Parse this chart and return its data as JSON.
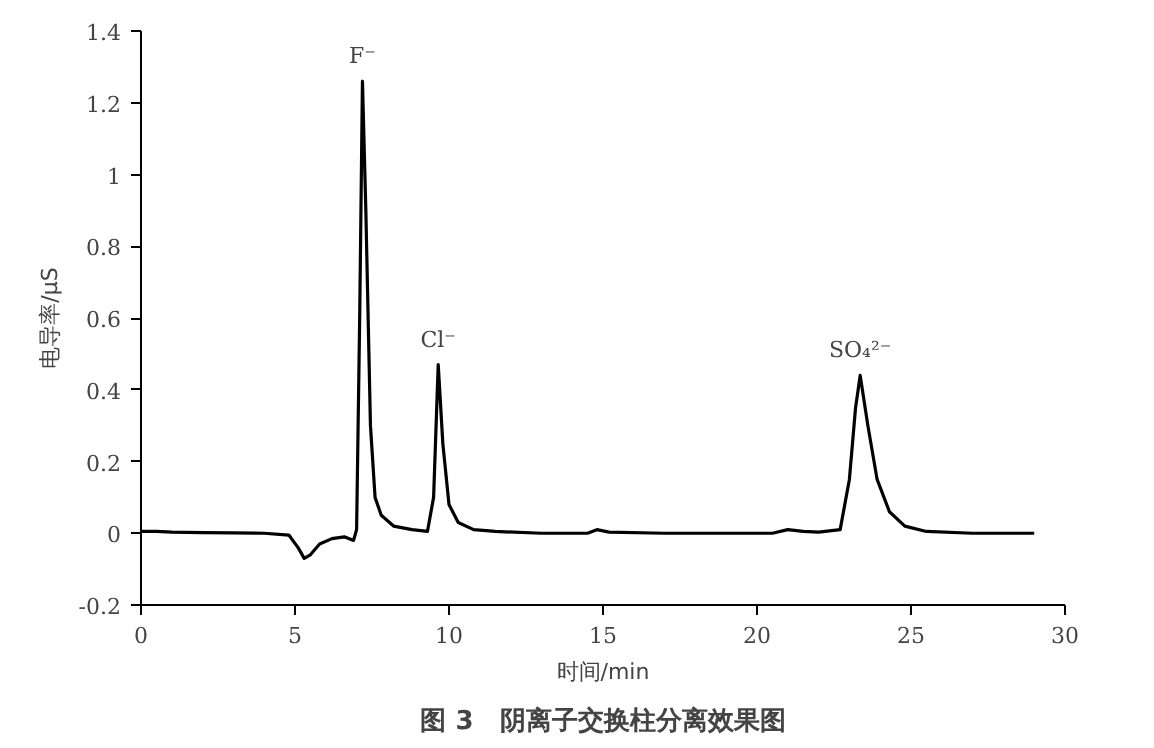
{
  "chart_data": {
    "type": "line",
    "title": "图 3　阴离子交换柱分离效果图",
    "xlabel": "时间/min",
    "ylabel": "电导率/μS",
    "x": [
      0,
      0.5,
      1,
      2,
      3,
      4,
      4.8,
      5.1,
      5.3,
      5.5,
      5.8,
      6.2,
      6.6,
      6.9,
      7.0,
      7.1,
      7.19,
      7.3,
      7.45,
      7.6,
      7.8,
      8.2,
      8.8,
      9.3,
      9.5,
      9.65,
      9.8,
      10.0,
      10.3,
      10.8,
      11.5,
      13,
      14.5,
      14.8,
      15.2,
      17,
      19,
      20.5,
      21,
      21.5,
      22,
      22.7,
      23.0,
      23.2,
      23.35,
      23.6,
      23.9,
      24.3,
      24.8,
      25.5,
      27,
      29
    ],
    "series": [
      {
        "color": "#000000",
        "values": [
          0.005,
          0.005,
          0.003,
          0.002,
          0.001,
          0,
          -0.005,
          -0.04,
          -0.07,
          -0.06,
          -0.03,
          -0.015,
          -0.01,
          -0.02,
          0.01,
          0.6,
          1.26,
          0.9,
          0.3,
          0.1,
          0.05,
          0.02,
          0.01,
          0.005,
          0.1,
          0.47,
          0.25,
          0.08,
          0.03,
          0.01,
          0.005,
          0,
          0,
          0.01,
          0.003,
          0,
          0,
          0,
          0.01,
          0.005,
          0.003,
          0.01,
          0.15,
          0.35,
          0.44,
          0.3,
          0.15,
          0.06,
          0.02,
          0.005,
          0,
          0
        ]
      }
    ],
    "xlim": [
      0,
      30
    ],
    "xticks": [
      0,
      5,
      10,
      15,
      20,
      25,
      30
    ],
    "ylim": [
      -0.2,
      1.4
    ],
    "yticks": [
      -0.2,
      0,
      0.2,
      0.4,
      0.6,
      0.8,
      1,
      1.2,
      1.4
    ],
    "annotations": [
      {
        "text": "F⁻",
        "x": 7.19,
        "y": 1.26
      },
      {
        "text": "Cl⁻",
        "x": 9.65,
        "y": 0.47
      },
      {
        "text": "SO₄²⁻",
        "x": 23.35,
        "y": 0.44
      }
    ],
    "grid": false,
    "marker": "none",
    "line_style": "solid"
  }
}
